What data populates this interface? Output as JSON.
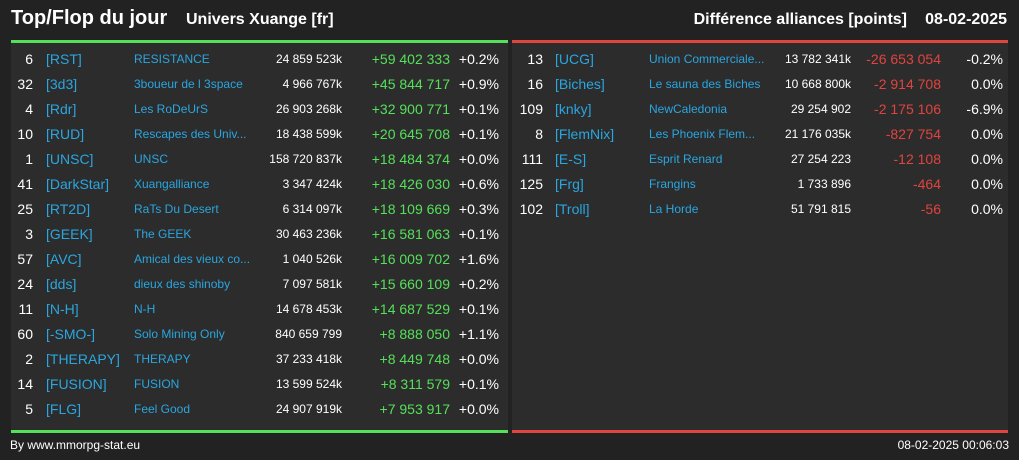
{
  "header": {
    "title": "Top/Flop du jour",
    "universe": "Univers Xuange [fr]",
    "subtitle": "Différence alliances [points]",
    "date": "08-02-2025"
  },
  "colors": {
    "positive": "#55e05a",
    "negative": "#e0443e",
    "link": "#2aa6e0",
    "background": "#222222"
  },
  "top": [
    {
      "rank": "6",
      "tag": "[RST]",
      "name": "RESISTANCE",
      "points": "24 859 523k",
      "diff": "+59 402 333",
      "pct": "+0.2%"
    },
    {
      "rank": "32",
      "tag": "[3d3]",
      "name": "3boueur de l 3space",
      "points": "4 966 767k",
      "diff": "+45 844 717",
      "pct": "+0.9%"
    },
    {
      "rank": "4",
      "tag": "[Rdr]",
      "name": "Les RoDeUrS",
      "points": "26 903 268k",
      "diff": "+32 900 771",
      "pct": "+0.1%"
    },
    {
      "rank": "10",
      "tag": "[RUD]",
      "name": "Rescapes des Univ...",
      "points": "18 438 599k",
      "diff": "+20 645 708",
      "pct": "+0.1%"
    },
    {
      "rank": "1",
      "tag": "[UNSC]",
      "name": "UNSC",
      "points": "158 720 837k",
      "diff": "+18 484 374",
      "pct": "+0.0%"
    },
    {
      "rank": "41",
      "tag": "[DarkStar]",
      "name": "Xuangalliance",
      "points": "3 347 424k",
      "diff": "+18 426 030",
      "pct": "+0.6%"
    },
    {
      "rank": "25",
      "tag": "[RT2D]",
      "name": "RaTs Du Desert",
      "points": "6 314 097k",
      "diff": "+18 109 669",
      "pct": "+0.3%"
    },
    {
      "rank": "3",
      "tag": "[GEEK]",
      "name": "The GEEK",
      "points": "30 463 236k",
      "diff": "+16 581 063",
      "pct": "+0.1%"
    },
    {
      "rank": "57",
      "tag": "[AVC]",
      "name": "Amical des vieux co...",
      "points": "1 040 526k",
      "diff": "+16 009 702",
      "pct": "+1.6%"
    },
    {
      "rank": "24",
      "tag": "[dds]",
      "name": "dieux des shinoby",
      "points": "7 097 581k",
      "diff": "+15 660 109",
      "pct": "+0.2%"
    },
    {
      "rank": "11",
      "tag": "[N-H]",
      "name": "N-H",
      "points": "14 678 453k",
      "diff": "+14 687 529",
      "pct": "+0.1%"
    },
    {
      "rank": "60",
      "tag": "[-SMO-]",
      "name": "Solo Mining Only",
      "points": "840 659 799",
      "diff": "+8 888 050",
      "pct": "+1.1%"
    },
    {
      "rank": "2",
      "tag": "[THERAPY]",
      "name": "THERAPY",
      "points": "37 233 418k",
      "diff": "+8 449 748",
      "pct": "+0.0%"
    },
    {
      "rank": "14",
      "tag": "[FUSION]",
      "name": "FUSION",
      "points": "13 599 524k",
      "diff": "+8 311 579",
      "pct": "+0.1%"
    },
    {
      "rank": "5",
      "tag": "[FLG]",
      "name": "Feel Good",
      "points": "24 907 919k",
      "diff": "+7 953 917",
      "pct": "+0.0%"
    }
  ],
  "flop": [
    {
      "rank": "13",
      "tag": "[UCG]",
      "name": "Union Commerciale...",
      "points": "13 782 341k",
      "diff": "-26 653 054",
      "pct": "-0.2%"
    },
    {
      "rank": "16",
      "tag": "[Biches]",
      "name": "Le sauna des Biches",
      "points": "10 668 800k",
      "diff": "-2 914 708",
      "pct": "0.0%"
    },
    {
      "rank": "109",
      "tag": "[knky]",
      "name": "NewCaledonia",
      "points": "29 254 902",
      "diff": "-2 175 106",
      "pct": "-6.9%"
    },
    {
      "rank": "8",
      "tag": "[FlemNix]",
      "name": "Les Phoenix Flem...",
      "points": "21 176 035k",
      "diff": "-827 754",
      "pct": "0.0%"
    },
    {
      "rank": "111",
      "tag": "[E-S]",
      "name": "Esprit Renard",
      "points": "27 254 223",
      "diff": "-12 108",
      "pct": "0.0%"
    },
    {
      "rank": "125",
      "tag": "[Frg]",
      "name": "Frangins",
      "points": "1 733 896",
      "diff": "-464",
      "pct": "0.0%"
    },
    {
      "rank": "102",
      "tag": "[Troll]",
      "name": "La Horde",
      "points": "51 791 815",
      "diff": "-56",
      "pct": "0.0%"
    }
  ],
  "footer": {
    "source": "By www.mmorpg-stat.eu",
    "timestamp": "08-02-2025 00:06:03"
  }
}
